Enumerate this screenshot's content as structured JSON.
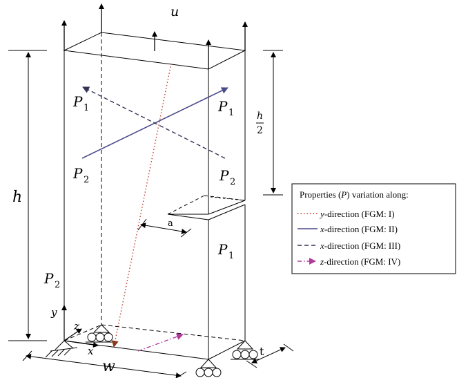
{
  "labels": {
    "u": "u",
    "h": "h",
    "half_num": "h",
    "half_den": "2",
    "a": "a",
    "t": "t",
    "w": "w",
    "x": "x",
    "y": "y",
    "z": "z",
    "P": "P",
    "sub1": "1",
    "sub2": "2"
  },
  "legend": {
    "title_pre": "Properties (",
    "title_var": "P",
    "title_post": ") variation along:",
    "items": [
      {
        "axis": "y",
        "text": "-direction (FGM: I)",
        "color": "#c0392b",
        "dash": "1.5 3"
      },
      {
        "axis": "x",
        "text": "-direction (FGM: II)",
        "color": "#4a4a8a",
        "dash": ""
      },
      {
        "axis": "x",
        "text": "-direction (FGM: III)",
        "color": "#333355",
        "dash": "6 4"
      },
      {
        "axis": "z",
        "text": "-direction (FGM: IV)",
        "color": "#b03a9a",
        "dash": "6 3 1.5 3"
      }
    ]
  },
  "colors": {
    "line": "#000000",
    "fgm1": "#c0392b",
    "fgm2": "#4a4a8a",
    "fgm3": "#333355",
    "fgm4": "#b03a9a",
    "fgm1_arrow": "#8b3a1a"
  }
}
